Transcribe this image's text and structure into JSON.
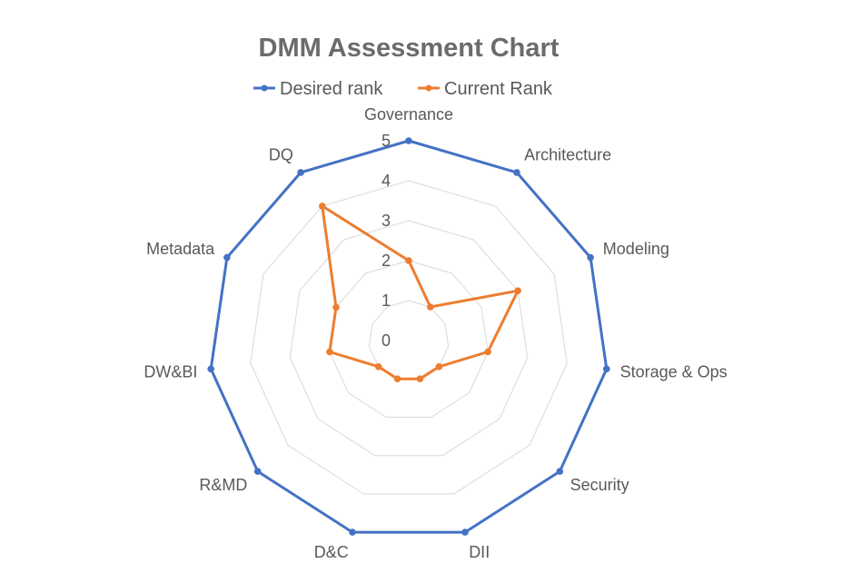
{
  "chart_data": {
    "type": "radar",
    "title": "DMM Assessment Chart",
    "categories": [
      "Governance",
      "Architecture",
      "Modeling",
      "Storage & Ops",
      "Security",
      "DII",
      "D&C",
      "R&MD",
      "DW&BI",
      "Metadata",
      "DQ"
    ],
    "rlim": [
      0,
      5
    ],
    "ticks": [
      0,
      1,
      2,
      3,
      4,
      5
    ],
    "grid": true,
    "legend_position": "top",
    "series": [
      {
        "name": "Desired rank",
        "color": "#4472c4",
        "values": [
          5,
          5,
          5,
          5,
          5,
          5,
          5,
          5,
          5,
          5,
          5
        ]
      },
      {
        "name": "Current Rank",
        "color": "#ed7d31",
        "values": [
          2,
          1,
          3,
          2,
          1,
          1,
          1,
          1,
          2,
          2,
          4
        ]
      }
    ]
  }
}
